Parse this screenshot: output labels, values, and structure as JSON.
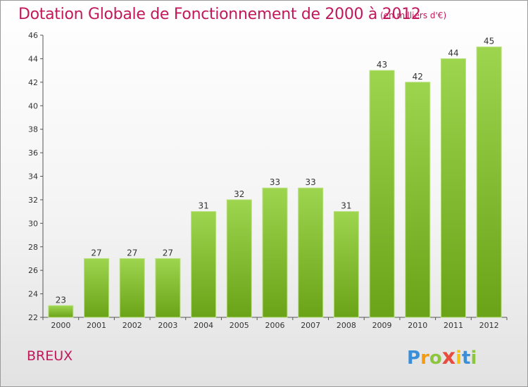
{
  "chart_data": {
    "type": "bar",
    "title": "Dotation Globale de Fonctionnement de 2000 à 2012",
    "subtitle": "(en milliers d'€)",
    "categories": [
      "2000",
      "2001",
      "2002",
      "2003",
      "2004",
      "2005",
      "2006",
      "2007",
      "2008",
      "2009",
      "2010",
      "2011",
      "2012"
    ],
    "values": [
      23,
      27,
      27,
      27,
      31,
      32,
      33,
      33,
      31,
      43,
      42,
      44,
      45
    ],
    "ylim": [
      22,
      46
    ],
    "yticks": [
      22,
      24,
      26,
      28,
      30,
      32,
      34,
      36,
      38,
      40,
      42,
      44,
      46
    ],
    "xlabel": "",
    "ylabel": "",
    "grid": false,
    "bar_color": "#8cc63f"
  },
  "footer": {
    "commune": "BREUX",
    "logo_letters": [
      "P",
      "r",
      "o",
      "x",
      "i",
      "t",
      "i"
    ],
    "logo_colors": [
      "#3a8fd8",
      "#f39c12",
      "#8cc63f",
      "#e74c3c",
      "#f1c40f",
      "#3a8fd8",
      "#8cc63f"
    ]
  }
}
